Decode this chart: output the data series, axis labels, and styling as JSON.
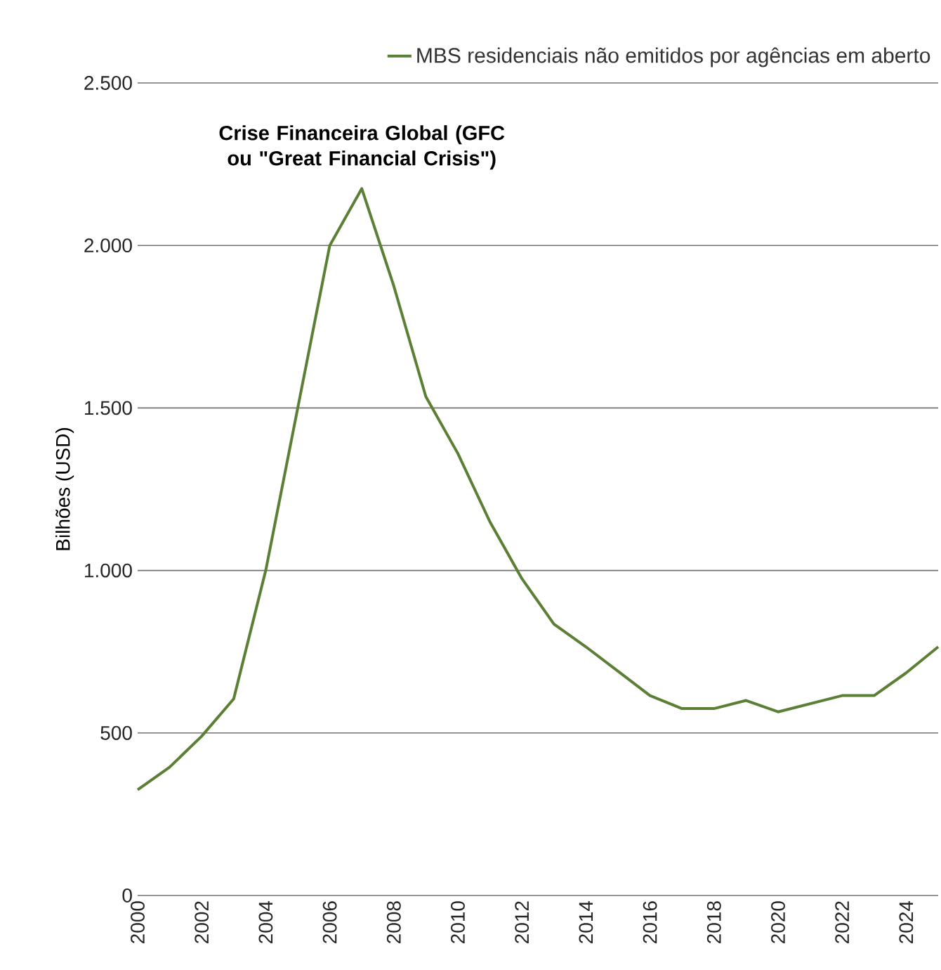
{
  "chart_data": {
    "type": "line",
    "ylabel": "Bilhões (USD)",
    "x": [
      2000,
      2001,
      2002,
      2003,
      2004,
      2005,
      2006,
      2007,
      2008,
      2009,
      2010,
      2011,
      2012,
      2013,
      2014,
      2015,
      2016,
      2017,
      2018,
      2019,
      2020,
      2021,
      2022,
      2023,
      2024,
      2025
    ],
    "series": [
      {
        "name": "MBS residenciais não emitidos por agências em aberto",
        "color": "#5b7f35",
        "values": [
          325,
          395,
          490,
          605,
          1000,
          1500,
          2000,
          2175,
          1875,
          1535,
          1360,
          1150,
          975,
          835,
          765,
          690,
          615,
          575,
          575,
          600,
          565,
          590,
          615,
          615,
          685,
          765
        ]
      }
    ],
    "xlim": [
      2000,
      2025
    ],
    "xticks": [
      2000,
      2002,
      2004,
      2006,
      2008,
      2010,
      2012,
      2014,
      2016,
      2018,
      2020,
      2022,
      2024
    ],
    "ylim": [
      0,
      2500
    ],
    "yticks": [
      0,
      500,
      {
        "value": 1000,
        "label": "1.000"
      },
      {
        "value": 1500,
        "label": "1.500"
      },
      {
        "value": 2000,
        "label": "2.000"
      },
      {
        "value": 2500,
        "label": "2.500"
      }
    ],
    "annotations": [
      {
        "text": "Crise Financeira Global (GFC ou \"Great Financial Crisis\")",
        "x": 2007,
        "y": 2175
      }
    ],
    "grid": "y",
    "legend": "top right",
    "marker": "none",
    "line_style": "solid"
  }
}
